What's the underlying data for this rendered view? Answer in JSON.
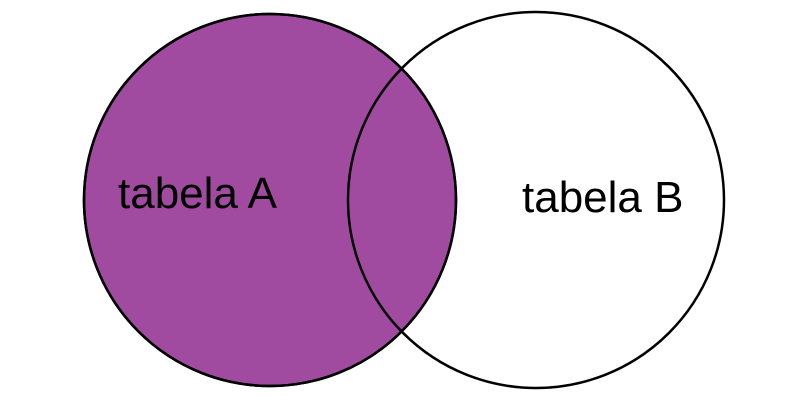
{
  "diagram": {
    "type": "venn",
    "sets": [
      {
        "label": "tabela A",
        "highlighted": true
      },
      {
        "label": "tabela B",
        "highlighted": false
      }
    ],
    "highlight_color": "#A04BA0",
    "outline_color": "#000000",
    "background_color": "#FFFFFF"
  }
}
